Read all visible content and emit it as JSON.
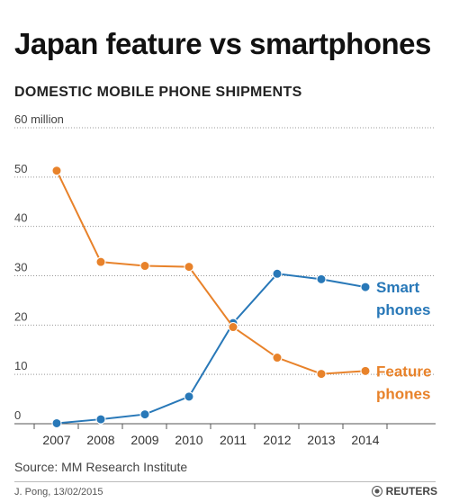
{
  "title": "Japan feature vs smartphones",
  "subtitle": "DOMESTIC MOBILE PHONE SHIPMENTS",
  "source": "Source: MM Research Institute",
  "credit": "J. Pong, 13/02/2015",
  "brand": "REUTERS",
  "colors": {
    "smart": "#2878b8",
    "feature": "#e8822a",
    "grid": "#999999",
    "axis": "#555555"
  },
  "chart_data": {
    "type": "line",
    "x": [
      "2007",
      "2008",
      "2009",
      "2010",
      "2011",
      "2012",
      "2013",
      "2014"
    ],
    "ylim": [
      0,
      60
    ],
    "yticks": [
      "0",
      "10",
      "20",
      "30",
      "40",
      "50",
      "60 million"
    ],
    "grid": true,
    "series": [
      {
        "name": "Smart phones",
        "label_lines": [
          "Smart",
          "phones"
        ],
        "color": "#2878b8",
        "values": [
          0.1,
          0.9,
          1.9,
          5.5,
          20.4,
          30.4,
          29.3,
          27.7
        ]
      },
      {
        "name": "Feature phones",
        "label_lines": [
          "Feature",
          "phones"
        ],
        "color": "#e8822a",
        "values": [
          51.3,
          32.8,
          32.0,
          31.8,
          19.6,
          13.4,
          10.1,
          10.7
        ]
      }
    ]
  }
}
